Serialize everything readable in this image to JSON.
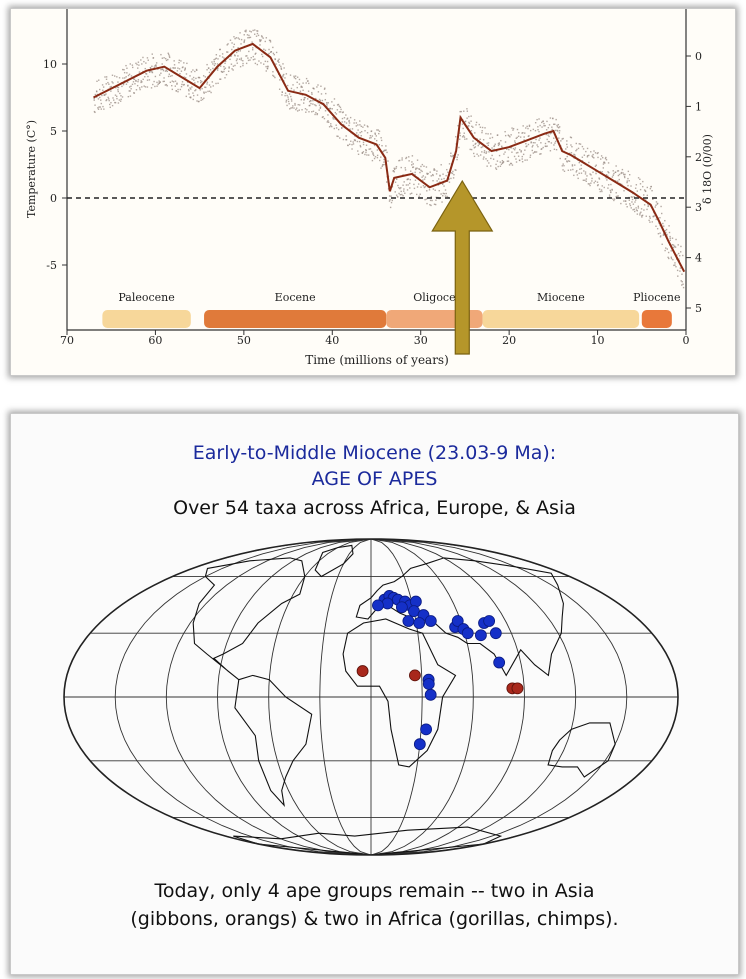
{
  "colors": {
    "curve": "#8a2a14",
    "scatter": "#9a8c86",
    "arrow": "#b5962a",
    "heading_blue": "#1b2a9c",
    "dot_blue": "#1530c8",
    "dot_red": "#a8281c",
    "epoch_colors": [
      "#f7d79a",
      "#e07a3a",
      "#f0a878",
      "#f7d79a",
      "#e8783a"
    ]
  },
  "chart_data": {
    "type": "line",
    "xlabel": "Time (millions of years)",
    "ylabel": "Temperature (C°)",
    "y2label": "δ 18O (0/00)",
    "xlim": [
      70,
      0
    ],
    "ylim": [
      -9,
      14
    ],
    "x_ticks": [
      70,
      60,
      50,
      40,
      30,
      20,
      10,
      0
    ],
    "y_ticks": [
      10,
      5,
      0,
      -5
    ],
    "y2_ticks": [
      0,
      1,
      2,
      3,
      4,
      5
    ],
    "reference_line": 0,
    "epochs": [
      {
        "name": "Paleocene",
        "start": 66,
        "end": 56
      },
      {
        "name": "Eocene",
        "start": 54.5,
        "end": 33.9
      },
      {
        "name": "Oligocene",
        "start": 33.9,
        "end": 23
      },
      {
        "name": "Miocene",
        "start": 23,
        "end": 5.3
      },
      {
        "name": "Pliocene",
        "start": 5,
        "end": 1.6
      }
    ],
    "epoch_labels": [
      "Paleocene",
      "Eocene",
      "Oligoce",
      "Miocene",
      "Pliocene"
    ],
    "series": [
      {
        "x": [
          67,
          64,
          61,
          59,
          57,
          55,
          53,
          51,
          49,
          47,
          45,
          43,
          41,
          39,
          37,
          35,
          34,
          33.5,
          33,
          31,
          29,
          27,
          26,
          25.5,
          25,
          24,
          22,
          20,
          18,
          16,
          15,
          14,
          13,
          12,
          10,
          8,
          6,
          4,
          3,
          2,
          1,
          0.2
        ],
        "y": [
          7.5,
          8.5,
          9.5,
          9.8,
          9,
          8.2,
          9.8,
          11,
          11.5,
          10.5,
          8,
          7.7,
          7,
          5.5,
          4.5,
          4,
          3,
          0.5,
          1.5,
          1.8,
          0.8,
          1.3,
          3.5,
          6,
          5.5,
          4.5,
          3.5,
          3.8,
          4.3,
          4.8,
          5,
          3.5,
          3.2,
          2.8,
          2,
          1.2,
          0.4,
          -0.5,
          -1.8,
          -3.2,
          -4.5,
          -5.5
        ]
      }
    ],
    "annotation": "upward arrow marking the Oligocene–Miocene boundary warming"
  },
  "map": {
    "title_line1": "Early-to-Middle Miocene (23.03-9 Ma):",
    "title_line2": "AGE OF APES",
    "subtitle": "Over 54 taxa across Africa, Europe, & Asia",
    "caption_line1": "Today, only 4 ape groups remain -- two in Asia",
    "caption_line2": "(gibbons, orangs) & two in Africa (gorillas, chimps).",
    "blue_sites": [
      [
        10,
        47
      ],
      [
        14,
        49
      ],
      [
        17,
        48
      ],
      [
        12,
        45
      ],
      [
        20,
        47
      ],
      [
        25,
        46
      ],
      [
        28,
        44
      ],
      [
        5,
        44
      ],
      [
        22,
        43
      ],
      [
        33,
        46
      ],
      [
        30,
        41
      ],
      [
        36,
        39
      ],
      [
        40,
        36
      ],
      [
        25,
        36
      ],
      [
        32,
        35
      ],
      [
        55,
        33
      ],
      [
        58,
        36
      ],
      [
        60,
        32
      ],
      [
        62,
        30
      ],
      [
        70,
        29
      ],
      [
        75,
        35
      ],
      [
        79,
        36
      ],
      [
        80,
        30
      ],
      [
        77,
        16
      ],
      [
        34,
        8
      ],
      [
        34,
        6
      ],
      [
        35,
        1
      ],
      [
        33,
        -15
      ],
      [
        30,
        -22
      ]
    ],
    "red_sites": [
      [
        -5,
        12
      ],
      [
        26,
        10
      ],
      [
        83,
        4
      ],
      [
        86,
        4
      ]
    ]
  }
}
